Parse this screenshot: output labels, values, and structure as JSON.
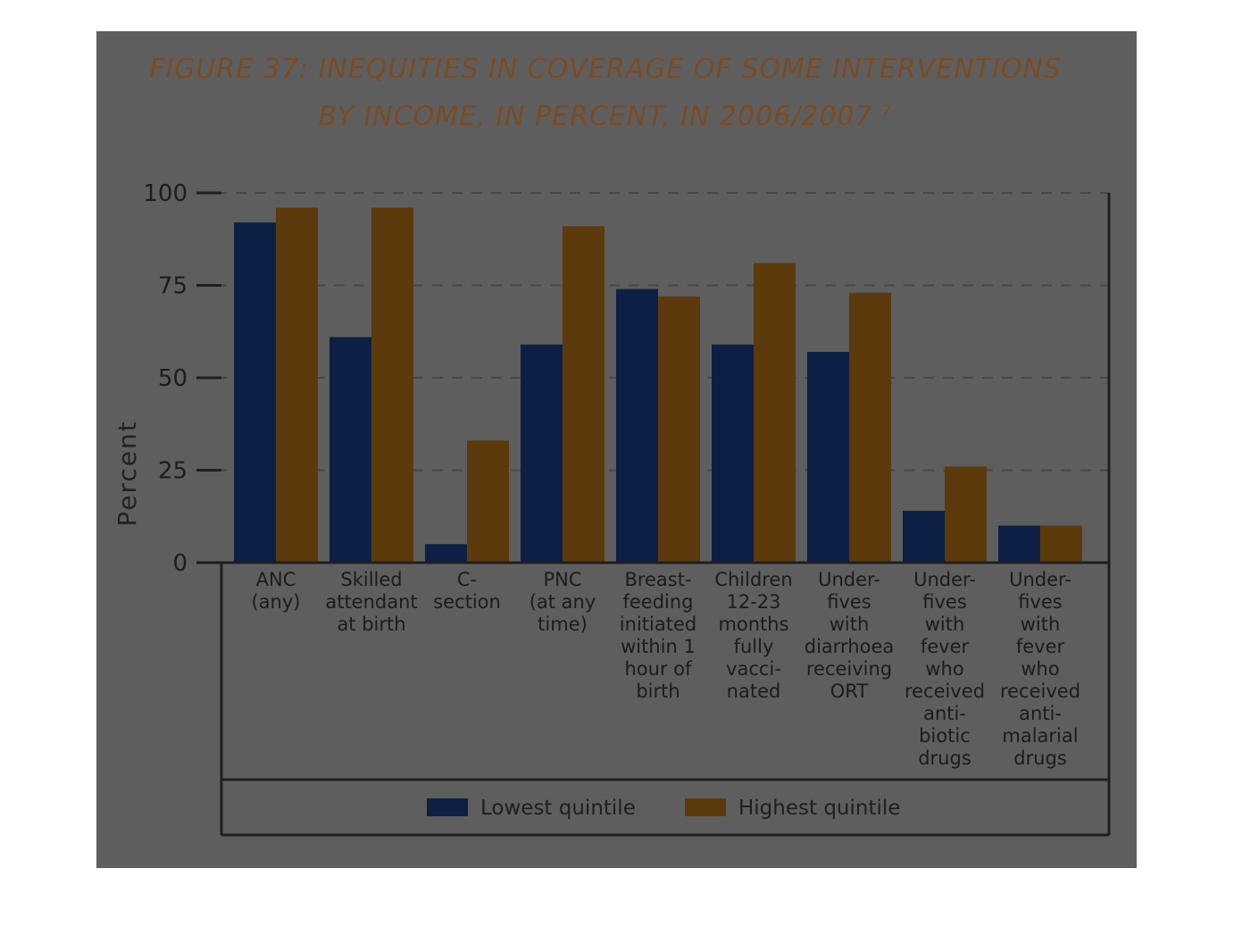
{
  "chart_data": {
    "type": "bar",
    "title_line1": "FIGURE 37: INEQUITIES IN COVERAGE OF SOME INTERVENTIONS",
    "title_line2": "BY INCOME, IN PERCENT, IN 2006/2007",
    "title_note": "7",
    "ylabel": "Percent",
    "xlabel": "",
    "ylim": [
      0,
      100
    ],
    "yticks": [
      0,
      25,
      50,
      75,
      100
    ],
    "grid": true,
    "legend_position": "bottom",
    "categories": [
      [
        "ANC",
        "(any)"
      ],
      [
        "Skilled",
        "attendant",
        "at birth"
      ],
      [
        "C-",
        "section"
      ],
      [
        "PNC",
        "(at any",
        "time)"
      ],
      [
        "Breast-",
        "feeding",
        "initiated",
        "within 1",
        "hour of",
        "birth"
      ],
      [
        "Children",
        "12-23",
        "months",
        "fully",
        "vacci-",
        "nated"
      ],
      [
        "Under-",
        "fives",
        "with",
        "diarrhoea",
        "receiving",
        "ORT"
      ],
      [
        "Under-",
        "fives",
        "with",
        "fever",
        "who",
        "received",
        "anti-",
        "biotic",
        "drugs"
      ],
      [
        "Under-",
        "fives",
        "with",
        "fever",
        "who",
        "received",
        "anti-",
        "malarial",
        "drugs"
      ]
    ],
    "series": [
      {
        "name": "Lowest quintile",
        "color": "#0d1f45",
        "values": [
          92,
          61,
          5,
          59,
          74,
          59,
          57,
          14,
          10
        ]
      },
      {
        "name": "Highest quintile",
        "color": "#5c3a0c",
        "values": [
          96,
          96,
          33,
          91,
          72,
          81,
          73,
          26,
          10
        ]
      }
    ]
  },
  "colors": {
    "panel": "#5e5e5e",
    "title": "#7a4b23",
    "axis": "#1f1f1f",
    "grid": "#474747"
  }
}
